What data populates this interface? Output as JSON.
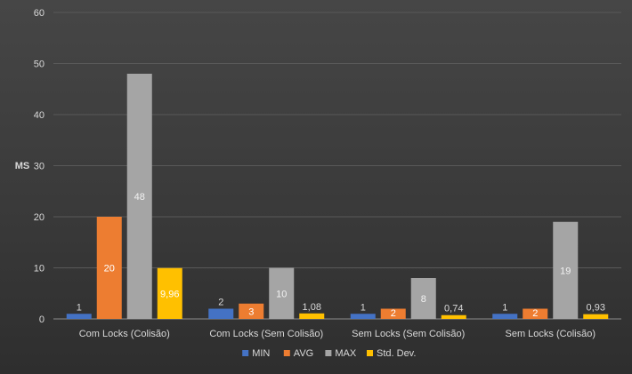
{
  "chart_data": {
    "type": "bar",
    "title": "",
    "xlabel": "",
    "ylabel": "MS",
    "ylim": [
      0,
      60
    ],
    "yticks": [
      0,
      10,
      20,
      30,
      40,
      50,
      60
    ],
    "grid": true,
    "legend_position": "bottom",
    "categories": [
      "Com Locks (Colisão)",
      "Com Locks (Sem Colisão)",
      "Sem Locks (Sem Colisão)",
      "Sem Locks (Colisão)"
    ],
    "series": [
      {
        "name": "MIN",
        "color": "#4472c4",
        "label_color": "#d9d9d9",
        "label_pos": "above",
        "values": [
          1,
          2,
          1,
          1
        ],
        "labels": [
          "1",
          "2",
          "1",
          "1"
        ]
      },
      {
        "name": "AVG",
        "color": "#ed7d31",
        "label_color": "#ffffff",
        "label_pos": "inside",
        "values": [
          20,
          3,
          2,
          2
        ],
        "labels": [
          "20",
          "3",
          "2",
          "2"
        ]
      },
      {
        "name": "MAX",
        "color": "#a5a5a5",
        "label_color": "#f2f2f2",
        "label_pos": "inside",
        "values": [
          48,
          10,
          8,
          19
        ],
        "labels": [
          "48",
          "10",
          "8",
          "19"
        ]
      },
      {
        "name": "Std. Dev.",
        "color": "#ffc000",
        "label_color": "#d9d9d9",
        "label_pos": "mixed",
        "values": [
          9.96,
          1.08,
          0.74,
          0.93
        ],
        "labels": [
          "9,96",
          "1,08",
          "0,74",
          "0,93"
        ]
      }
    ]
  }
}
